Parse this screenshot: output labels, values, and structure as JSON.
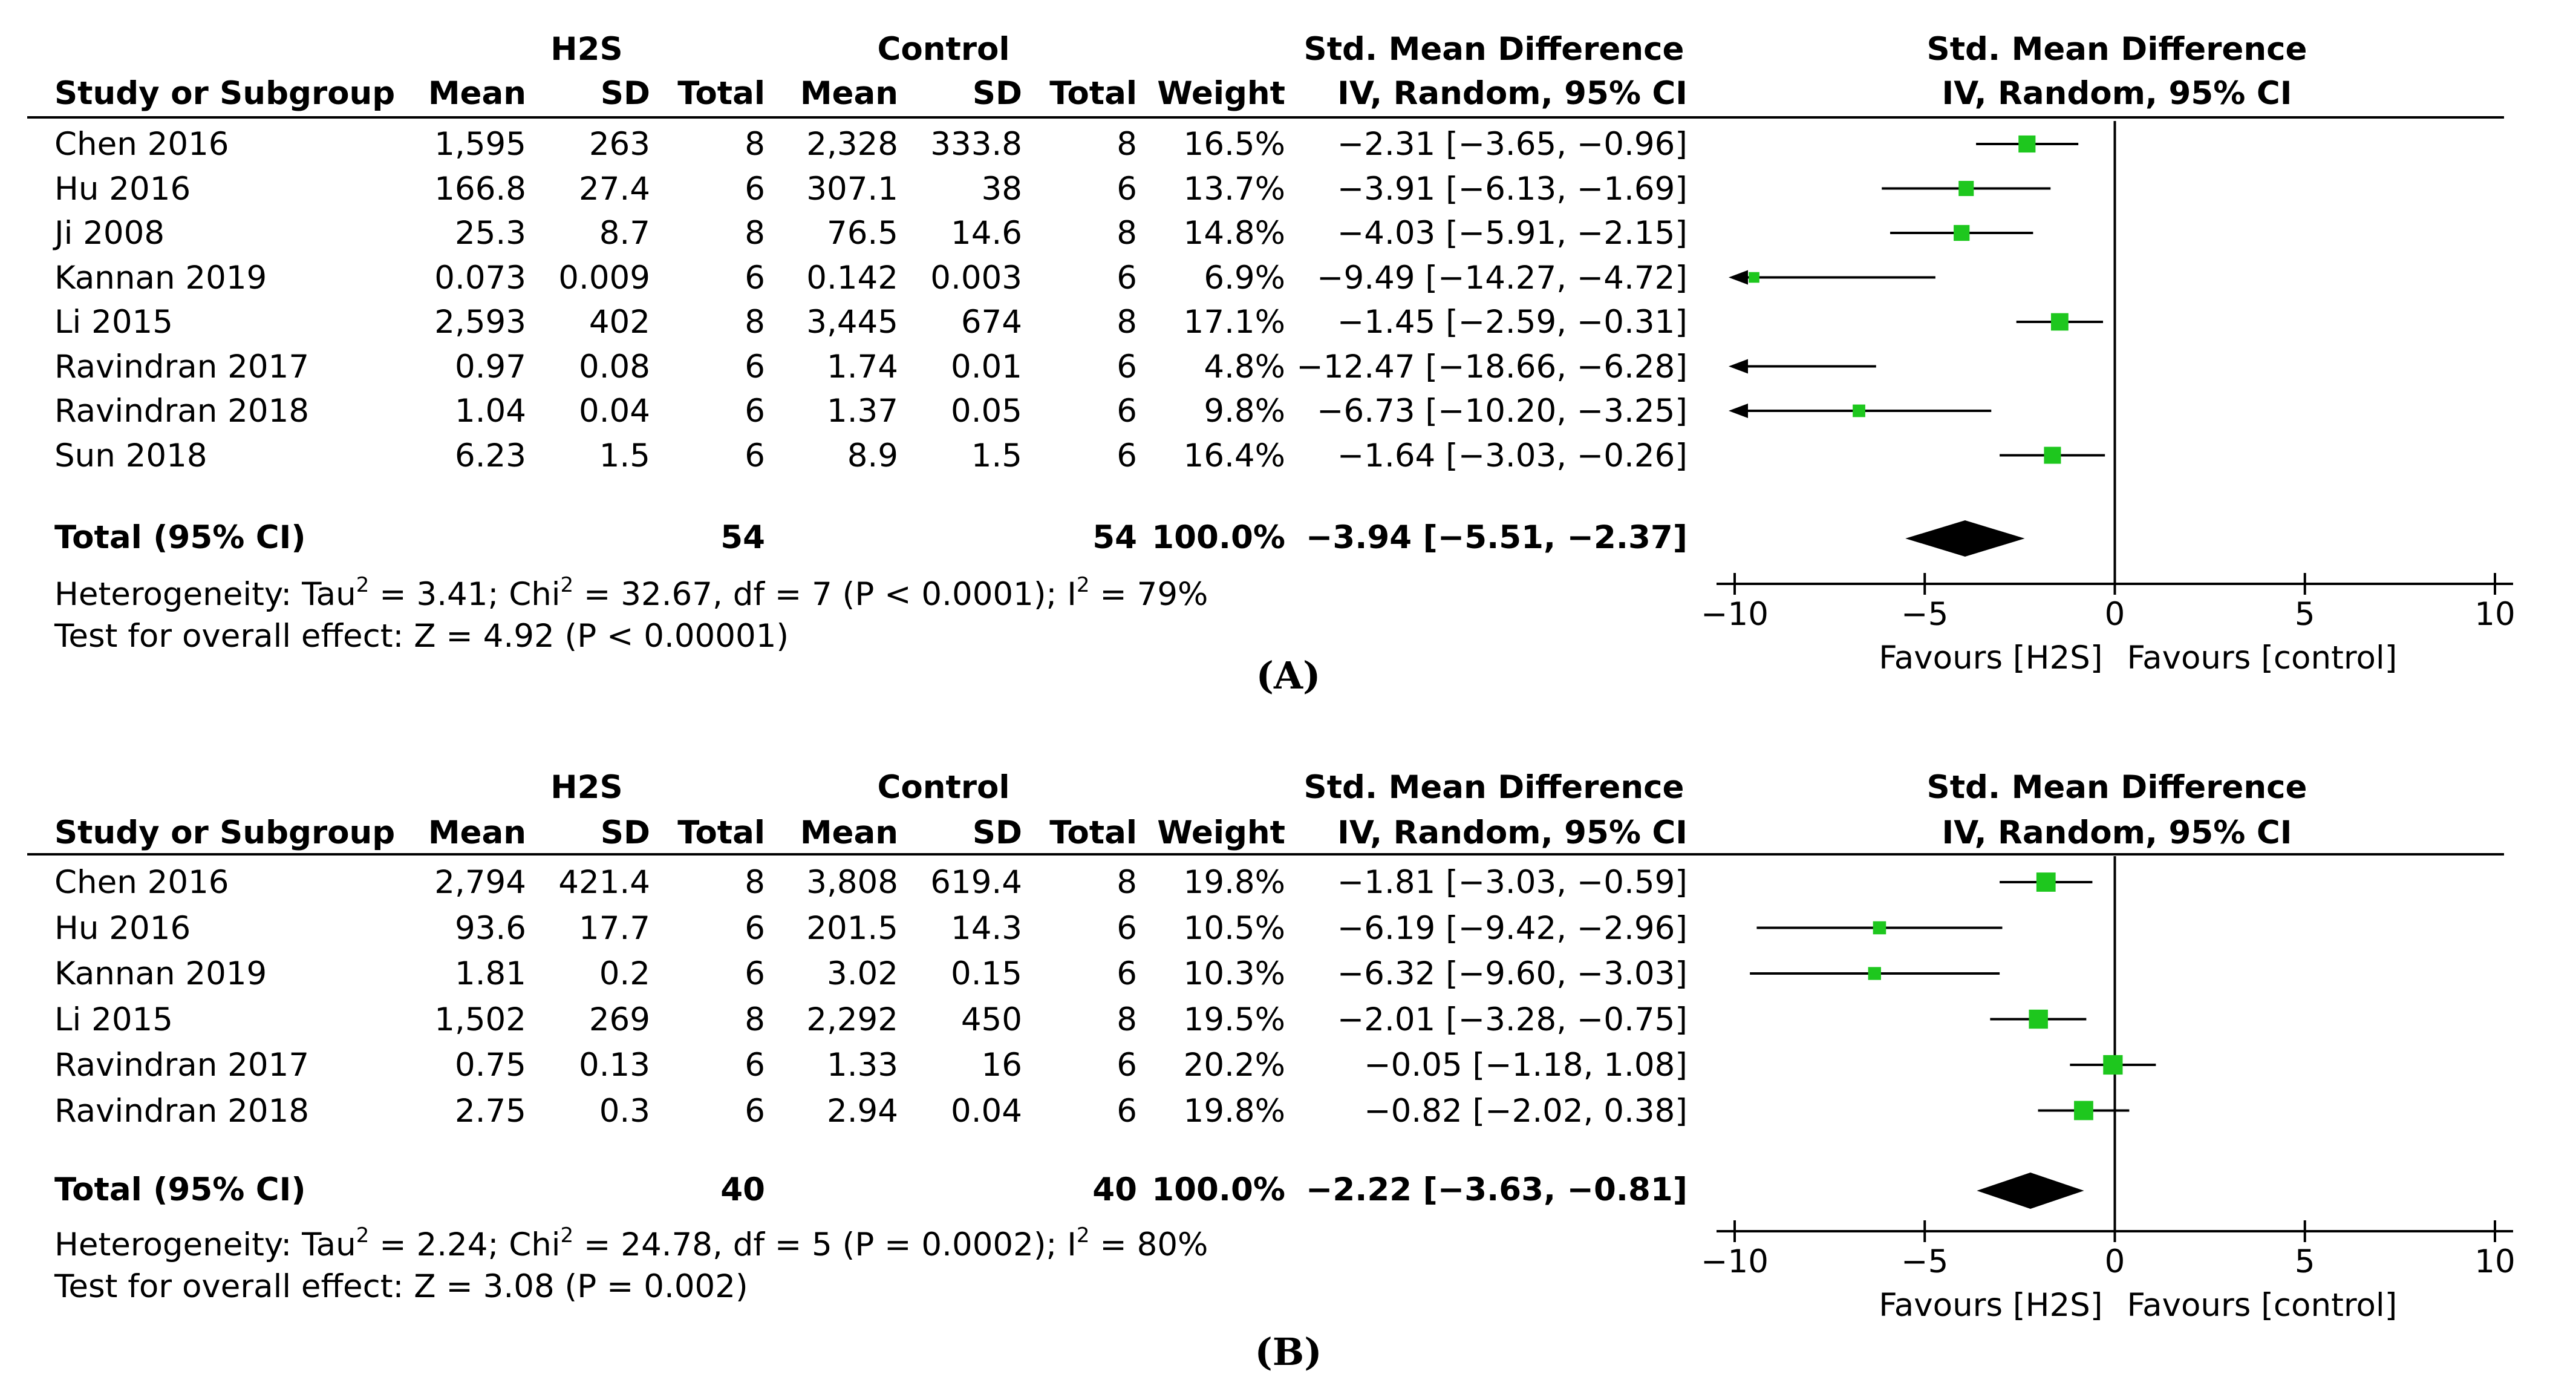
{
  "panels": [
    {
      "label": "(A)",
      "headers": {
        "group1": "H2S",
        "group2": "Control",
        "effect": "Std. Mean Difference",
        "effect_sub": "IV, Random, 95% CI",
        "study": "Study or Subgroup",
        "mean": "Mean",
        "sd": "SD",
        "total": "Total",
        "weight": "Weight"
      },
      "rows": [
        {
          "study": "Chen 2016",
          "m1": "1,595",
          "sd1": "263",
          "n1": "8",
          "m2": "2,328",
          "sd2": "333.8",
          "n2": "8",
          "weight": "16.5%",
          "ci": "−2.31 [−3.65, −0.96]"
        },
        {
          "study": "Hu 2016",
          "m1": "166.8",
          "sd1": "27.4",
          "n1": "6",
          "m2": "307.1",
          "sd2": "38",
          "n2": "6",
          "weight": "13.7%",
          "ci": "−3.91 [−6.13, −1.69]"
        },
        {
          "study": "Ji 2008",
          "m1": "25.3",
          "sd1": "8.7",
          "n1": "8",
          "m2": "76.5",
          "sd2": "14.6",
          "n2": "8",
          "weight": "14.8%",
          "ci": "−4.03 [−5.91, −2.15]"
        },
        {
          "study": "Kannan 2019",
          "m1": "0.073",
          "sd1": "0.009",
          "n1": "6",
          "m2": "0.142",
          "sd2": "0.003",
          "n2": "6",
          "weight": "6.9%",
          "ci": "−9.49 [−14.27, −4.72]"
        },
        {
          "study": "Li 2015",
          "m1": "2,593",
          "sd1": "402",
          "n1": "8",
          "m2": "3,445",
          "sd2": "674",
          "n2": "8",
          "weight": "17.1%",
          "ci": "−1.45 [−2.59, −0.31]"
        },
        {
          "study": "Ravindran 2017",
          "m1": "0.97",
          "sd1": "0.08",
          "n1": "6",
          "m2": "1.74",
          "sd2": "0.01",
          "n2": "6",
          "weight": "4.8%",
          "ci": "−12.47 [−18.66, −6.28]"
        },
        {
          "study": "Ravindran 2018",
          "m1": "1.04",
          "sd1": "0.04",
          "n1": "6",
          "m2": "1.37",
          "sd2": "0.05",
          "n2": "6",
          "weight": "9.8%",
          "ci": "−6.73 [−10.20, −3.25]"
        },
        {
          "study": "Sun 2018",
          "m1": "6.23",
          "sd1": "1.5",
          "n1": "6",
          "m2": "8.9",
          "sd2": "1.5",
          "n2": "6",
          "weight": "16.4%",
          "ci": "−1.64 [−3.03, −0.26]"
        }
      ],
      "total": {
        "label": "Total (95% CI)",
        "n1": "54",
        "n2": "54",
        "weight": "100.0%",
        "ci": "−3.94 [−5.51, −2.37]"
      },
      "heterogeneity_prefix": "Heterogeneity: Tau",
      "heterogeneity_mid": " = 3.41; Chi",
      "heterogeneity_mid2": " = 32.67, df = 7 (P < 0.0001); I",
      "heterogeneity_end": " = 79%",
      "superscript": "2",
      "overall": "Test for overall effect: Z = 4.92 (P < 0.00001)",
      "favours_left": "Favours [H2S]",
      "favours_right": "Favours [control]"
    },
    {
      "label": "(B)",
      "headers": {
        "group1": "H2S",
        "group2": "Control",
        "effect": "Std. Mean Difference",
        "effect_sub": "IV, Random, 95% CI",
        "study": "Study or Subgroup",
        "mean": "Mean",
        "sd": "SD",
        "total": "Total",
        "weight": "Weight"
      },
      "rows": [
        {
          "study": "Chen 2016",
          "m1": "2,794",
          "sd1": "421.4",
          "n1": "8",
          "m2": "3,808",
          "sd2": "619.4",
          "n2": "8",
          "weight": "19.8%",
          "ci": "−1.81 [−3.03, −0.59]"
        },
        {
          "study": "Hu 2016",
          "m1": "93.6",
          "sd1": "17.7",
          "n1": "6",
          "m2": "201.5",
          "sd2": "14.3",
          "n2": "6",
          "weight": "10.5%",
          "ci": "−6.19 [−9.42, −2.96]"
        },
        {
          "study": "Kannan 2019",
          "m1": "1.81",
          "sd1": "0.2",
          "n1": "6",
          "m2": "3.02",
          "sd2": "0.15",
          "n2": "6",
          "weight": "10.3%",
          "ci": "−6.32 [−9.60, −3.03]"
        },
        {
          "study": "Li 2015",
          "m1": "1,502",
          "sd1": "269",
          "n1": "8",
          "m2": "2,292",
          "sd2": "450",
          "n2": "8",
          "weight": "19.5%",
          "ci": "−2.01 [−3.28, −0.75]"
        },
        {
          "study": "Ravindran 2017",
          "m1": "0.75",
          "sd1": "0.13",
          "n1": "6",
          "m2": "1.33",
          "sd2": "16",
          "n2": "6",
          "weight": "20.2%",
          "ci": "−0.05 [−1.18, 1.08]"
        },
        {
          "study": "Ravindran 2018",
          "m1": "2.75",
          "sd1": "0.3",
          "n1": "6",
          "m2": "2.94",
          "sd2": "0.04",
          "n2": "6",
          "weight": "19.8%",
          "ci": "−0.82 [−2.02, 0.38]"
        }
      ],
      "total": {
        "label": "Total (95% CI)",
        "n1": "40",
        "n2": "40",
        "weight": "100.0%",
        "ci": "−2.22 [−3.63, −0.81]"
      },
      "heterogeneity_prefix": "Heterogeneity: Tau",
      "heterogeneity_mid": " = 2.24; Chi",
      "heterogeneity_mid2": " = 24.78, df = 5 (P = 0.0002); I",
      "heterogeneity_end": " = 80%",
      "superscript": "2",
      "overall": "Test for overall effect: Z = 3.08 (P = 0.002)",
      "favours_left": "Favours [H2S]",
      "favours_right": "Favours [control]"
    }
  ],
  "colors": {
    "marker": "#1ec71e",
    "line": "#000000"
  },
  "chart_data": [
    {
      "type": "forest",
      "title": "Std. Mean Difference",
      "xlim": [
        -10,
        10
      ],
      "xticks": [
        -10,
        -5,
        0,
        5,
        10
      ],
      "xtick_labels": [
        "−10",
        "−5",
        "0",
        "5",
        "10"
      ],
      "studies": [
        {
          "name": "Chen 2016",
          "est": -2.31,
          "lo": -3.65,
          "hi": -0.96,
          "weight": 16.5
        },
        {
          "name": "Hu 2016",
          "est": -3.91,
          "lo": -6.13,
          "hi": -1.69,
          "weight": 13.7
        },
        {
          "name": "Ji 2008",
          "est": -4.03,
          "lo": -5.91,
          "hi": -2.15,
          "weight": 14.8
        },
        {
          "name": "Kannan 2019",
          "est": -9.49,
          "lo": -14.27,
          "hi": -4.72,
          "weight": 6.9
        },
        {
          "name": "Li 2015",
          "est": -1.45,
          "lo": -2.59,
          "hi": -0.31,
          "weight": 17.1
        },
        {
          "name": "Ravindran 2017",
          "est": -12.47,
          "lo": -18.66,
          "hi": -6.28,
          "weight": 4.8
        },
        {
          "name": "Ravindran 2018",
          "est": -6.73,
          "lo": -10.2,
          "hi": -3.25,
          "weight": 9.8
        },
        {
          "name": "Sun 2018",
          "est": -1.64,
          "lo": -3.03,
          "hi": -0.26,
          "weight": 16.4
        }
      ],
      "pooled": {
        "est": -3.94,
        "lo": -5.51,
        "hi": -2.37
      }
    },
    {
      "type": "forest",
      "title": "Std. Mean Difference",
      "xlim": [
        -10,
        10
      ],
      "xticks": [
        -10,
        -5,
        0,
        5,
        10
      ],
      "xtick_labels": [
        "−10",
        "−5",
        "0",
        "5",
        "10"
      ],
      "studies": [
        {
          "name": "Chen 2016",
          "est": -1.81,
          "lo": -3.03,
          "hi": -0.59,
          "weight": 19.8
        },
        {
          "name": "Hu 2016",
          "est": -6.19,
          "lo": -9.42,
          "hi": -2.96,
          "weight": 10.5
        },
        {
          "name": "Kannan 2019",
          "est": -6.32,
          "lo": -9.6,
          "hi": -3.03,
          "weight": 10.3
        },
        {
          "name": "Li 2015",
          "est": -2.01,
          "lo": -3.28,
          "hi": -0.75,
          "weight": 19.5
        },
        {
          "name": "Ravindran 2017",
          "est": -0.05,
          "lo": -1.18,
          "hi": 1.08,
          "weight": 20.2
        },
        {
          "name": "Ravindran 2018",
          "est": -0.82,
          "lo": -2.02,
          "hi": 0.38,
          "weight": 19.8
        }
      ],
      "pooled": {
        "est": -2.22,
        "lo": -3.63,
        "hi": -0.81
      }
    }
  ]
}
